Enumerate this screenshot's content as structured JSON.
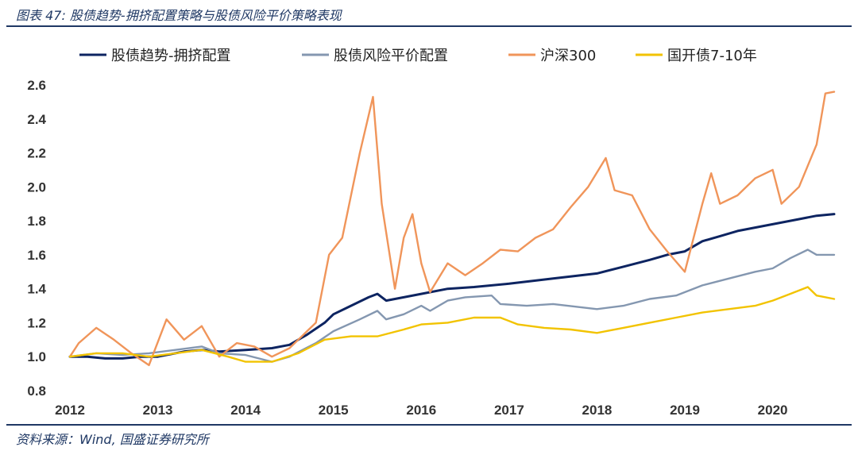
{
  "figure": {
    "title": "图表 47: 股债趋势-拥挤配置策略与股债风险平价策略表现",
    "source": "资料来源：Wind, 国盛证券研究所"
  },
  "chart_data": {
    "type": "line",
    "ylim": [
      0.8,
      2.6
    ],
    "yticks": [
      "2.6",
      "2.4",
      "2.2",
      "2.0",
      "1.8",
      "1.6",
      "1.4",
      "1.2",
      "1.0",
      "0.8"
    ],
    "xticks": [
      "2012",
      "2013",
      "2014",
      "2015",
      "2016",
      "2017",
      "2018",
      "2019",
      "2020"
    ],
    "xlim": [
      2012.0,
      2020.7
    ],
    "grid": false,
    "legend_position": "top",
    "series": [
      {
        "name": "股债趋势-拥挤配置",
        "color": "#0d2461",
        "points": [
          [
            2012.0,
            1.0
          ],
          [
            2012.2,
            1.0
          ],
          [
            2012.4,
            0.99
          ],
          [
            2012.6,
            0.99
          ],
          [
            2012.8,
            1.0
          ],
          [
            2013.0,
            1.0
          ],
          [
            2013.3,
            1.03
          ],
          [
            2013.5,
            1.04
          ],
          [
            2013.7,
            1.03
          ],
          [
            2014.0,
            1.04
          ],
          [
            2014.3,
            1.05
          ],
          [
            2014.5,
            1.07
          ],
          [
            2014.7,
            1.13
          ],
          [
            2014.9,
            1.2
          ],
          [
            2015.0,
            1.25
          ],
          [
            2015.2,
            1.3
          ],
          [
            2015.4,
            1.35
          ],
          [
            2015.5,
            1.37
          ],
          [
            2015.6,
            1.33
          ],
          [
            2015.8,
            1.35
          ],
          [
            2016.0,
            1.37
          ],
          [
            2016.3,
            1.4
          ],
          [
            2016.6,
            1.41
          ],
          [
            2017.0,
            1.43
          ],
          [
            2017.5,
            1.46
          ],
          [
            2018.0,
            1.49
          ],
          [
            2018.3,
            1.53
          ],
          [
            2018.6,
            1.57
          ],
          [
            2018.8,
            1.6
          ],
          [
            2019.0,
            1.62
          ],
          [
            2019.2,
            1.68
          ],
          [
            2019.4,
            1.71
          ],
          [
            2019.6,
            1.74
          ],
          [
            2019.9,
            1.77
          ],
          [
            2020.0,
            1.78
          ],
          [
            2020.3,
            1.81
          ],
          [
            2020.5,
            1.83
          ],
          [
            2020.7,
            1.84
          ]
        ]
      },
      {
        "name": "股债风险平价配置",
        "color": "#8497b0",
        "points": [
          [
            2012.0,
            1.0
          ],
          [
            2012.3,
            1.02
          ],
          [
            2012.6,
            1.01
          ],
          [
            2012.9,
            1.02
          ],
          [
            2013.2,
            1.04
          ],
          [
            2013.5,
            1.06
          ],
          [
            2013.7,
            1.02
          ],
          [
            2014.0,
            1.01
          ],
          [
            2014.3,
            0.97
          ],
          [
            2014.5,
            1.0
          ],
          [
            2014.8,
            1.08
          ],
          [
            2015.0,
            1.15
          ],
          [
            2015.3,
            1.22
          ],
          [
            2015.5,
            1.27
          ],
          [
            2015.6,
            1.22
          ],
          [
            2015.8,
            1.25
          ],
          [
            2016.0,
            1.3
          ],
          [
            2016.1,
            1.27
          ],
          [
            2016.3,
            1.33
          ],
          [
            2016.5,
            1.35
          ],
          [
            2016.8,
            1.36
          ],
          [
            2016.9,
            1.31
          ],
          [
            2017.2,
            1.3
          ],
          [
            2017.5,
            1.31
          ],
          [
            2018.0,
            1.28
          ],
          [
            2018.3,
            1.3
          ],
          [
            2018.6,
            1.34
          ],
          [
            2018.9,
            1.36
          ],
          [
            2019.2,
            1.42
          ],
          [
            2019.5,
            1.46
          ],
          [
            2019.8,
            1.5
          ],
          [
            2020.0,
            1.52
          ],
          [
            2020.2,
            1.58
          ],
          [
            2020.4,
            1.63
          ],
          [
            2020.5,
            1.6
          ],
          [
            2020.7,
            1.6
          ]
        ]
      },
      {
        "name": "沪深300",
        "color": "#f0955a",
        "points": [
          [
            2012.0,
            1.0
          ],
          [
            2012.1,
            1.08
          ],
          [
            2012.3,
            1.17
          ],
          [
            2012.5,
            1.1
          ],
          [
            2012.7,
            1.02
          ],
          [
            2012.9,
            0.95
          ],
          [
            2013.1,
            1.22
          ],
          [
            2013.3,
            1.1
          ],
          [
            2013.5,
            1.18
          ],
          [
            2013.7,
            1.0
          ],
          [
            2013.9,
            1.08
          ],
          [
            2014.1,
            1.06
          ],
          [
            2014.3,
            1.0
          ],
          [
            2014.5,
            1.05
          ],
          [
            2014.8,
            1.2
          ],
          [
            2014.95,
            1.6
          ],
          [
            2015.1,
            1.7
          ],
          [
            2015.3,
            2.2
          ],
          [
            2015.45,
            2.53
          ],
          [
            2015.55,
            1.9
          ],
          [
            2015.7,
            1.4
          ],
          [
            2015.8,
            1.7
          ],
          [
            2015.9,
            1.84
          ],
          [
            2016.0,
            1.55
          ],
          [
            2016.1,
            1.38
          ],
          [
            2016.3,
            1.55
          ],
          [
            2016.5,
            1.48
          ],
          [
            2016.7,
            1.55
          ],
          [
            2016.9,
            1.63
          ],
          [
            2017.1,
            1.62
          ],
          [
            2017.3,
            1.7
          ],
          [
            2017.5,
            1.75
          ],
          [
            2017.7,
            1.88
          ],
          [
            2017.9,
            2.0
          ],
          [
            2018.1,
            2.17
          ],
          [
            2018.2,
            1.98
          ],
          [
            2018.4,
            1.95
          ],
          [
            2018.6,
            1.75
          ],
          [
            2018.8,
            1.62
          ],
          [
            2019.0,
            1.5
          ],
          [
            2019.2,
            1.9
          ],
          [
            2019.3,
            2.08
          ],
          [
            2019.4,
            1.9
          ],
          [
            2019.6,
            1.95
          ],
          [
            2019.8,
            2.05
          ],
          [
            2020.0,
            2.1
          ],
          [
            2020.1,
            1.9
          ],
          [
            2020.3,
            2.0
          ],
          [
            2020.5,
            2.25
          ],
          [
            2020.6,
            2.55
          ],
          [
            2020.7,
            2.56
          ]
        ]
      },
      {
        "name": "国开债7-10年",
        "color": "#f2c300",
        "points": [
          [
            2012.0,
            1.0
          ],
          [
            2012.3,
            1.02
          ],
          [
            2012.6,
            1.02
          ],
          [
            2012.9,
            1.0
          ],
          [
            2013.2,
            1.02
          ],
          [
            2013.5,
            1.04
          ],
          [
            2013.8,
            1.0
          ],
          [
            2014.0,
            0.97
          ],
          [
            2014.3,
            0.97
          ],
          [
            2014.6,
            1.02
          ],
          [
            2014.9,
            1.1
          ],
          [
            2015.2,
            1.12
          ],
          [
            2015.5,
            1.12
          ],
          [
            2015.8,
            1.16
          ],
          [
            2016.0,
            1.19
          ],
          [
            2016.3,
            1.2
          ],
          [
            2016.6,
            1.23
          ],
          [
            2016.9,
            1.23
          ],
          [
            2017.1,
            1.19
          ],
          [
            2017.4,
            1.17
          ],
          [
            2017.7,
            1.16
          ],
          [
            2018.0,
            1.14
          ],
          [
            2018.3,
            1.17
          ],
          [
            2018.6,
            1.2
          ],
          [
            2018.9,
            1.23
          ],
          [
            2019.2,
            1.26
          ],
          [
            2019.5,
            1.28
          ],
          [
            2019.8,
            1.3
          ],
          [
            2020.0,
            1.33
          ],
          [
            2020.2,
            1.37
          ],
          [
            2020.4,
            1.41
          ],
          [
            2020.5,
            1.36
          ],
          [
            2020.7,
            1.34
          ]
        ]
      }
    ]
  }
}
